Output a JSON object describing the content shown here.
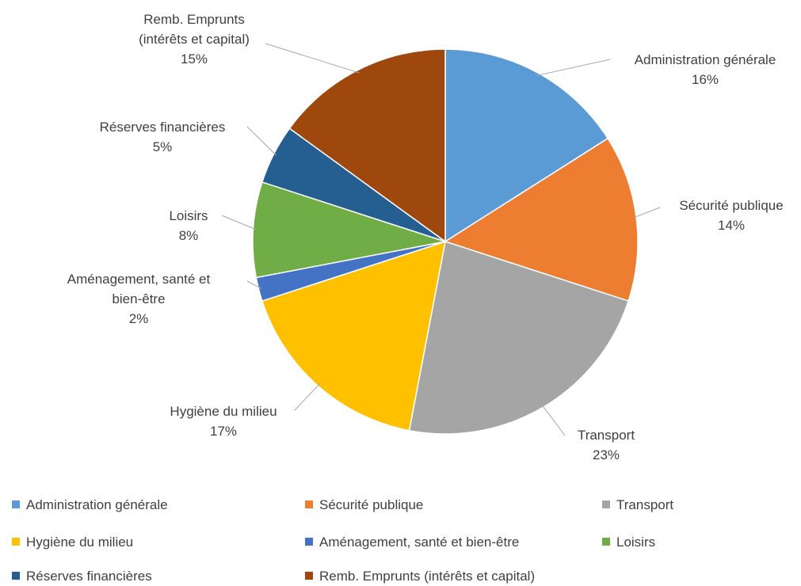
{
  "chart_data": {
    "type": "pie",
    "categories": [
      "Administration générale",
      "Sécurité publique",
      "Transport",
      "Hygiène du milieu",
      "Aménagement, santé et bien-être",
      "Loisirs",
      "Réserves financières",
      "Remb. Emprunts (intérêts et capital)"
    ],
    "values": [
      16,
      14,
      23,
      17,
      2,
      8,
      5,
      15
    ],
    "value_labels": [
      "16%",
      "14%",
      "23%",
      "17%",
      "2%",
      "8%",
      "5%",
      "15%"
    ],
    "colors": [
      "#5b9bd5",
      "#ed7d31",
      "#a5a5a5",
      "#ffc000",
      "#4472c4",
      "#70ad47",
      "#255e91",
      "#9e480e"
    ],
    "legend": "bottom"
  }
}
